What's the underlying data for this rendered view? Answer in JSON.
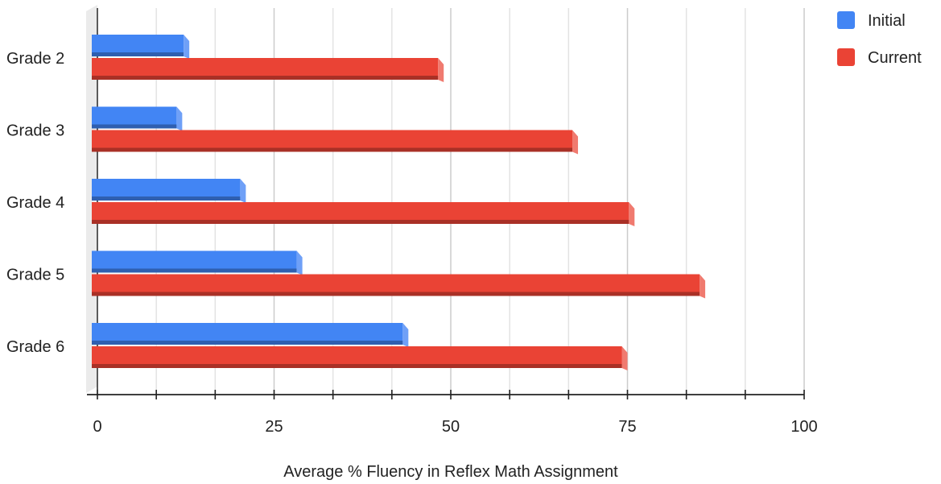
{
  "chart_data": {
    "type": "bar",
    "orientation": "horizontal",
    "style": "3d",
    "categories": [
      "Grade 2",
      "Grade 3",
      "Grade 4",
      "Grade 5",
      "Grade 6"
    ],
    "series": [
      {
        "name": "Initial",
        "color": "#4285f4",
        "values": [
          13,
          12,
          21,
          29,
          44
        ]
      },
      {
        "name": "Current",
        "color": "#ea4335",
        "values": [
          49,
          68,
          76,
          86,
          75
        ]
      }
    ],
    "xlabel": "Average % Fluency in Reflex Math Assignment",
    "ylabel": "",
    "xlim": [
      0,
      100
    ],
    "xticks": [
      "0",
      "25",
      "50",
      "75",
      "100"
    ],
    "grid": true,
    "legend_position": "top-right"
  }
}
